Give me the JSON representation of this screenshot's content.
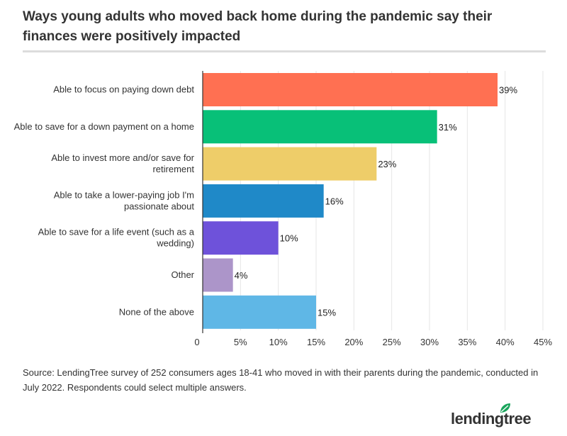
{
  "title": "Ways young adults who moved back home during the pandemic say their finances were positively impacted",
  "source": "Source: LendingTree survey of 252 consumers ages 18-41 who moved in with their parents during the pandemic, conducted in July 2022. Respondents could select multiple answers.",
  "logo": {
    "text": "lendingtree",
    "icon": "leaf-icon",
    "color": "#1aa55c"
  },
  "chart_data": {
    "type": "bar",
    "orientation": "horizontal",
    "categories": [
      [
        "Able to focus on paying down debt"
      ],
      [
        "Able to save for a down payment on a home"
      ],
      [
        "Able to invest more and/or save for",
        "retirement"
      ],
      [
        "Able to take a lower-paying job I'm",
        "passionate about"
      ],
      [
        "Able to save for a life event (such as a",
        "wedding)"
      ],
      [
        "Other"
      ],
      [
        "None of the above"
      ]
    ],
    "values": [
      39,
      31,
      23,
      16,
      10,
      4,
      15
    ],
    "value_labels": [
      "39%",
      "31%",
      "23%",
      "16%",
      "10%",
      "4%",
      "15%"
    ],
    "colors": [
      "#ff7052",
      "#08c078",
      "#eecd69",
      "#1f89c8",
      "#6e52da",
      "#ac95c9",
      "#5fb7e6"
    ],
    "xlim": [
      0,
      45
    ],
    "ticks": [
      0,
      5,
      10,
      15,
      20,
      25,
      30,
      35,
      40,
      45
    ],
    "tick_labels": [
      "0",
      "5%",
      "10%",
      "15%",
      "20%",
      "25%",
      "30%",
      "35%",
      "40%",
      "45%"
    ],
    "grid": true
  }
}
